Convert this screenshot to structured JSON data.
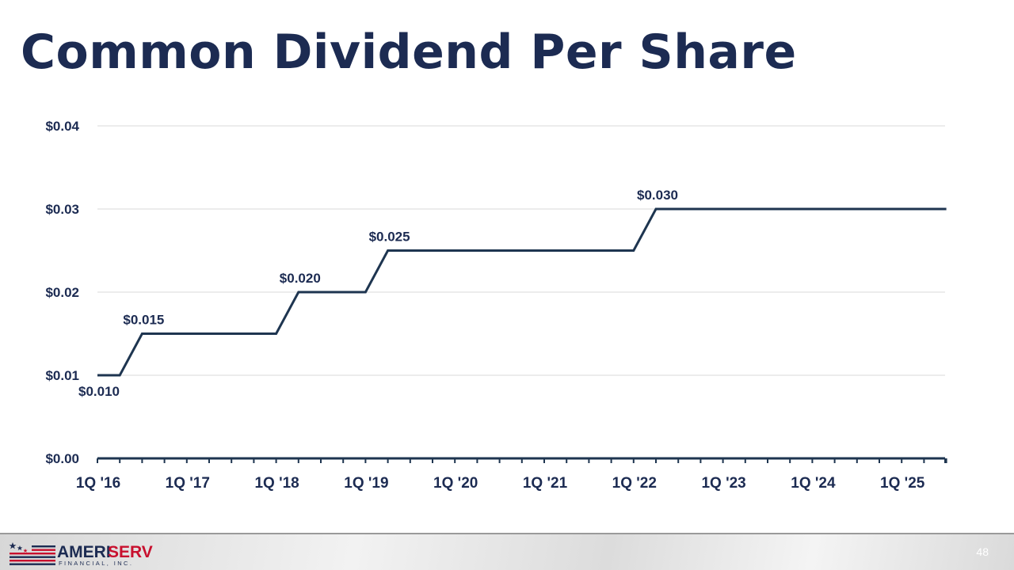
{
  "slide": {
    "title": "Common Dividend Per Share",
    "page_number": "48"
  },
  "logo": {
    "brand_left": "AMERI",
    "brand_right": "SERV",
    "tagline": "FINANCIAL, INC."
  },
  "colors": {
    "title": "#1c2b52",
    "line": "#1e3550",
    "axis_text": "#1c2b52",
    "gridline": "#d9d9d9",
    "logo_red": "#c8102e",
    "logo_navy": "#1c2b52"
  },
  "chart_data": {
    "type": "line",
    "title": "",
    "xlabel": "",
    "ylabel": "",
    "ylim": [
      0,
      0.04
    ],
    "yticks": [
      {
        "value": 0,
        "label": "$0.00"
      },
      {
        "value": 0.01,
        "label": "$0.01"
      },
      {
        "value": 0.02,
        "label": "$0.02"
      },
      {
        "value": 0.03,
        "label": "$0.03"
      },
      {
        "value": 0.04,
        "label": "$0.04"
      }
    ],
    "grid": true,
    "legend": "none",
    "xticks": [
      "1Q '16",
      "1Q '17",
      "1Q '18",
      "1Q '19",
      "1Q '20",
      "1Q '21",
      "1Q '22",
      "1Q '23",
      "1Q '24",
      "1Q '25"
    ],
    "categories": [
      "1Q '16",
      "2Q '16",
      "3Q '16",
      "4Q '16",
      "1Q '17",
      "2Q '17",
      "3Q '17",
      "4Q '17",
      "1Q '18",
      "2Q '18",
      "3Q '18",
      "4Q '18",
      "1Q '19",
      "2Q '19",
      "3Q '19",
      "4Q '19",
      "1Q '20",
      "2Q '20",
      "3Q '20",
      "4Q '20",
      "1Q '21",
      "2Q '21",
      "3Q '21",
      "4Q '21",
      "1Q '22",
      "2Q '22",
      "3Q '22",
      "4Q '22",
      "1Q '23",
      "2Q '23",
      "3Q '23",
      "4Q '23",
      "1Q '24",
      "2Q '24",
      "3Q '24",
      "4Q '24",
      "1Q '25",
      "2Q '25",
      "3Q '25"
    ],
    "values": [
      0.01,
      0.01,
      0.015,
      0.015,
      0.015,
      0.015,
      0.015,
      0.015,
      0.015,
      0.02,
      0.02,
      0.02,
      0.02,
      0.025,
      0.025,
      0.025,
      0.025,
      0.025,
      0.025,
      0.025,
      0.025,
      0.025,
      0.025,
      0.025,
      0.025,
      0.03,
      0.03,
      0.03,
      0.03,
      0.03,
      0.03,
      0.03,
      0.03,
      0.03,
      0.03,
      0.03,
      0.03,
      0.03,
      0.03
    ],
    "data_labels": [
      {
        "index": 0,
        "label": "$0.010",
        "position": "below"
      },
      {
        "index": 2,
        "label": "$0.015",
        "position": "above"
      },
      {
        "index": 9,
        "label": "$0.020",
        "position": "above"
      },
      {
        "index": 13,
        "label": "$0.025",
        "position": "above"
      },
      {
        "index": 25,
        "label": "$0.030",
        "position": "above"
      }
    ]
  }
}
